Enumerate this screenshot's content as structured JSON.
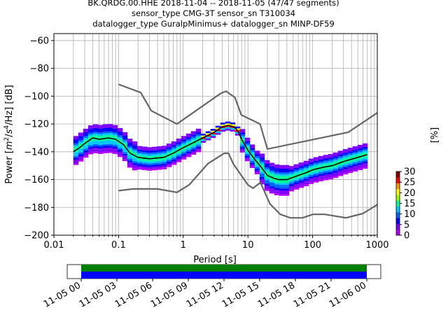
{
  "title_lines": [
    "BK.QRDG.00.HHE   2018-11-04 -- 2018-11-05  (47/47 segments)",
    "sensor_type CMG-3T sensor_sn T310034",
    "datalogger_type GuralpMinimus+ datalogger_sn MINP-DF59"
  ],
  "chart_data": [
    {
      "type": "heatmap",
      "title": "BK.QRDG.00.HHE   2018-11-04 -- 2018-11-05  (47/47 segments)",
      "xlabel": "Period [s]",
      "ylabel": "Power [m²/s⁴/Hz] [dB]",
      "ylabel_parts": {
        "prefix": "Power [",
        "m": "m",
        "exp2": "2",
        "slash1": "/",
        "s": "s",
        "exp4": "4",
        "rest": "/Hz] [dB]"
      },
      "x_scale": "log",
      "xlim": [
        0.01,
        1000
      ],
      "ylim": [
        -200,
        -55
      ],
      "x_ticks": [
        0.01,
        0.1,
        1,
        10,
        100,
        1000
      ],
      "x_tick_labels": [
        "0.01",
        "0.1",
        "1",
        "10",
        "100",
        "1000"
      ],
      "y_ticks": [
        -200,
        -180,
        -160,
        -140,
        -120,
        -100,
        -80,
        -60
      ],
      "y_tick_labels": [
        "−200",
        "−180",
        "−160",
        "−140",
        "−120",
        "−100",
        "−80",
        "−60"
      ],
      "grid": true,
      "colorbar": {
        "label": "[%]",
        "range": [
          0,
          30
        ],
        "ticks": [
          0,
          5,
          10,
          15,
          20,
          25,
          30
        ],
        "tick_labels": [
          "0",
          "5",
          "10",
          "15",
          "20",
          "25",
          "30"
        ],
        "colormap": [
          "#ffffff",
          "#b400ff",
          "#7d00ff",
          "#0000ff",
          "#0064ff",
          "#00c8ff",
          "#00ff96",
          "#96ff00",
          "#ffff00",
          "#ff9600",
          "#ff0000",
          "#8b0000"
        ]
      },
      "series": [
        {
          "name": "mode",
          "color": "#000000",
          "x": [
            0.02,
            0.025,
            0.03,
            0.04,
            0.05,
            0.07,
            0.09,
            0.12,
            0.15,
            0.2,
            0.3,
            0.5,
            0.7,
            1.0,
            1.5,
            2.0,
            3.0,
            4.0,
            5.0,
            6.0,
            7.0,
            8.0,
            10,
            13,
            16,
            20,
            25,
            30,
            40,
            60,
            80,
            100,
            150,
            200,
            300,
            500,
            700
          ],
          "y": [
            -140,
            -137,
            -134,
            -130,
            -131,
            -130,
            -131,
            -135,
            -141,
            -144,
            -145,
            -144,
            -141,
            -137,
            -133,
            -130,
            -126,
            -122,
            -121,
            -122,
            -125,
            -131,
            -139,
            -146,
            -151,
            -157,
            -159,
            -160,
            -160,
            -157,
            -155,
            -153,
            -151,
            -150,
            -147,
            -144,
            -142
          ]
        },
        {
          "name": "new high noise model",
          "color": "#666666",
          "x": [
            0.1,
            0.22,
            0.32,
            0.8,
            3.8,
            4.6,
            6.3,
            7.9,
            15.4,
            20,
            354.8,
            1000
          ],
          "y": [
            -91.5,
            -97.4,
            -110.5,
            -120,
            -98,
            -96.5,
            -101,
            -113.5,
            -120,
            -138,
            -126,
            -112
          ]
        },
        {
          "name": "new low noise model",
          "color": "#666666",
          "x": [
            0.1,
            0.17,
            0.4,
            0.8,
            1.24,
            2.4,
            4.3,
            5.0,
            6.0,
            10.0,
            12.0,
            15.6,
            21.9,
            31.6,
            45.0,
            70.0,
            101.0,
            154.0,
            328.0,
            600.0,
            1000.0
          ],
          "y": [
            -168,
            -166.7,
            -166.7,
            -169.2,
            -163.7,
            -148.6,
            -141.1,
            -141.1,
            -149,
            -163.8,
            -166.2,
            -162.1,
            -177.5,
            -185,
            -187.5,
            -187.5,
            -185,
            -185,
            -187.5,
            -184.4,
            -178
          ]
        }
      ],
      "coverage": {
        "x_tick_labels": [
          "11-05 00",
          "11-05 03",
          "11-05 06",
          "11-05 09",
          "11-05 12",
          "11-05 15",
          "11-05 18",
          "11-05 21",
          "11-06 00"
        ],
        "bands": [
          {
            "color": "#008000"
          },
          {
            "color": "#0000ff"
          }
        ]
      }
    }
  ]
}
